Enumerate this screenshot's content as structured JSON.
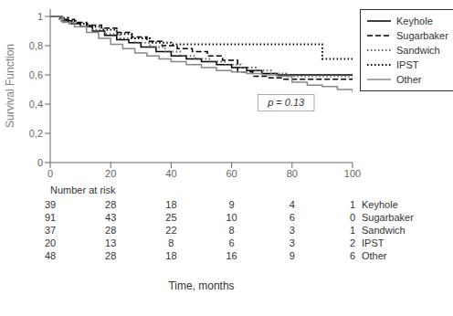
{
  "chart_data": {
    "type": "step",
    "xlabel": "Time, months",
    "ylabel": "Survival Function",
    "xlim": [
      0,
      100
    ],
    "ylim": [
      0,
      1.05
    ],
    "xticks": [
      0,
      20,
      40,
      60,
      80,
      100
    ],
    "yticks": [
      0,
      {
        "value": 0.2,
        "label": "0,2"
      },
      {
        "value": 0.4,
        "label": "0,4"
      },
      {
        "value": 0.6,
        "label": "0,6"
      },
      {
        "value": 0.8,
        "label": "0,8"
      },
      1
    ],
    "grid": false,
    "legend": "right",
    "series": [
      {
        "name": "Keyhole",
        "color": "#000000",
        "line_style": "solid",
        "x": [
          0,
          4,
          7,
          10,
          14,
          18,
          22,
          26,
          30,
          35,
          40,
          45,
          50,
          55,
          60,
          65,
          70,
          75,
          80,
          100
        ],
        "values": [
          1.0,
          0.97,
          0.95,
          0.93,
          0.9,
          0.87,
          0.84,
          0.82,
          0.79,
          0.76,
          0.73,
          0.71,
          0.69,
          0.67,
          0.65,
          0.63,
          0.61,
          0.6,
          0.6,
          0.6
        ]
      },
      {
        "name": "Sugarbaker",
        "color": "#000000",
        "line_style": "dashed",
        "x": [
          0,
          4,
          8,
          12,
          17,
          22,
          27,
          32,
          37,
          42,
          47,
          52,
          57,
          62,
          67,
          72,
          77,
          82,
          100
        ],
        "values": [
          1.0,
          0.98,
          0.96,
          0.94,
          0.92,
          0.89,
          0.86,
          0.83,
          0.8,
          0.78,
          0.76,
          0.73,
          0.7,
          0.62,
          0.59,
          0.58,
          0.57,
          0.57,
          0.57
        ]
      },
      {
        "name": "Sandwich",
        "color": "#666666",
        "line_style": "dotted",
        "x": [
          0,
          3,
          6,
          10,
          14,
          18,
          23,
          28,
          33,
          38,
          43,
          48,
          53,
          58,
          63,
          68,
          73,
          78,
          100
        ],
        "values": [
          1.0,
          0.97,
          0.95,
          0.93,
          0.91,
          0.88,
          0.85,
          0.82,
          0.79,
          0.76,
          0.73,
          0.71,
          0.69,
          0.67,
          0.65,
          0.63,
          0.61,
          0.59,
          0.59
        ]
      },
      {
        "name": "IPST",
        "color": "#000000",
        "line_style": "dotted",
        "x": [
          0,
          3,
          6,
          9,
          13,
          17,
          22,
          27,
          33,
          40,
          50,
          60,
          70,
          80,
          90,
          100
        ],
        "values": [
          1.0,
          0.99,
          0.97,
          0.95,
          0.93,
          0.91,
          0.88,
          0.85,
          0.82,
          0.81,
          0.81,
          0.81,
          0.81,
          0.81,
          0.71,
          0.71
        ]
      },
      {
        "name": "Other",
        "color": "#888888",
        "line_style": "solid",
        "x": [
          0,
          4,
          8,
          12,
          16,
          20,
          24,
          28,
          32,
          36,
          40,
          45,
          50,
          55,
          60,
          65,
          70,
          75,
          80,
          85,
          90,
          95,
          100
        ],
        "values": [
          1.0,
          0.96,
          0.93,
          0.89,
          0.85,
          0.81,
          0.78,
          0.75,
          0.73,
          0.71,
          0.69,
          0.67,
          0.65,
          0.63,
          0.62,
          0.61,
          0.6,
          0.59,
          0.55,
          0.53,
          0.52,
          0.5,
          0.48
        ]
      }
    ],
    "annotations": [
      {
        "text": "p = 0.13",
        "x": 78,
        "y": 0.41
      }
    ],
    "risk_table": {
      "label": "Number at risk",
      "x": [
        0,
        20,
        40,
        60,
        80,
        100
      ],
      "rows": [
        {
          "name": "Keyhole",
          "values": [
            39,
            28,
            18,
            9,
            4,
            1
          ]
        },
        {
          "name": "Sugarbaker",
          "values": [
            91,
            43,
            25,
            10,
            6,
            0
          ]
        },
        {
          "name": "Sandwich",
          "values": [
            37,
            28,
            22,
            8,
            3,
            1
          ]
        },
        {
          "name": "IPST",
          "values": [
            20,
            13,
            8,
            6,
            3,
            2
          ]
        },
        {
          "name": "Other",
          "values": [
            48,
            28,
            18,
            16,
            9,
            6
          ]
        }
      ]
    }
  }
}
